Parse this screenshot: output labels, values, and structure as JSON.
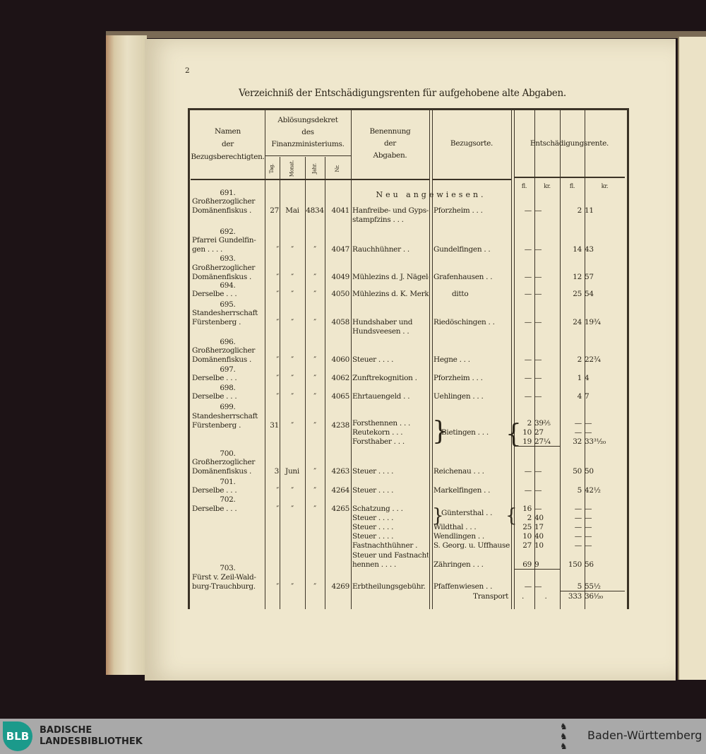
{
  "page_number": "2",
  "title": "Verzeichniß der Entschädigungsrenten für aufgehobene alte Abgaben.",
  "headers": {
    "namen": [
      "Namen",
      "der",
      "Bezugsberechtigten."
    ],
    "dekret": [
      "Ablösungsdekret",
      "des",
      "Finanzministeriums."
    ],
    "tag": "Tag.",
    "monat": "Monat.",
    "jahr": "Jahr.",
    "nr": "Nr.",
    "benennung": [
      "Benennung",
      "der",
      "Abgaben."
    ],
    "orte": "Bezugsorte.",
    "rente": "Entschädigungsrente.",
    "units": [
      "fl.",
      "kr.",
      "fl.",
      "kr."
    ]
  },
  "section": "Neu angewiesen.",
  "entries": [
    {
      "num": "691.",
      "name": [
        "Großherzoglicher",
        "Domänenfiskus ."
      ],
      "tag": "27",
      "monat": "Mai",
      "jahr": "4834",
      "nr": "4041",
      "items": [
        {
          "a": [
            "Hanfreibe- und Gyps-",
            "stampfzins . . ."
          ],
          "o": "Pforzheim . . .",
          "v": [
            "—",
            "—",
            "2",
            "11"
          ]
        }
      ]
    },
    {
      "num": "692.",
      "name": [
        "Pfarrei Gundelfin-",
        "gen . . . ."
      ],
      "tag": "″",
      "monat": "″",
      "jahr": "″",
      "nr": "4047",
      "items": [
        {
          "a": [
            "Rauchhühner . ."
          ],
          "o": "Gundelfingen . .",
          "v": [
            "—",
            "—",
            "14",
            "43"
          ]
        }
      ]
    },
    {
      "num": "693.",
      "name": [
        "Großherzoglicher",
        "Domänenfiskus ."
      ],
      "tag": "″",
      "monat": "″",
      "jahr": "″",
      "nr": "4049",
      "items": [
        {
          "a": [
            "Mühlezins d. J. Nägele"
          ],
          "o": "Grafenhausen . .",
          "v": [
            "—",
            "—",
            "12",
            "57"
          ]
        }
      ]
    },
    {
      "num": "694.",
      "name": [
        "Derselbe . . ."
      ],
      "tag": "″",
      "monat": "″",
      "jahr": "″",
      "nr": "4050",
      "items": [
        {
          "a": [
            "Mühlezins d. K. Merkl"
          ],
          "o": "ditto",
          "v": [
            "—",
            "—",
            "25",
            "54"
          ]
        }
      ]
    },
    {
      "num": "695.",
      "name": [
        "Standesherrschaft",
        "Fürstenberg ."
      ],
      "tag": "″",
      "monat": "″",
      "jahr": "″",
      "nr": "4058",
      "items": [
        {
          "a": [
            "Hundshaber und",
            "Hundsveesen . ."
          ],
          "o": "Riedöschingen . .",
          "v": [
            "—",
            "—",
            "24",
            "19¾"
          ]
        }
      ]
    },
    {
      "num": "696.",
      "name": [
        "Großherzoglicher",
        "Domänenfiskus ."
      ],
      "tag": "″",
      "monat": "″",
      "jahr": "″",
      "nr": "4060",
      "items": [
        {
          "a": [
            "Steuer . . . ."
          ],
          "o": "Hegne . . .",
          "v": [
            "—",
            "—",
            "2",
            "22¾"
          ]
        }
      ]
    },
    {
      "num": "697.",
      "name": [
        "Derselbe . . ."
      ],
      "tag": "″",
      "monat": "″",
      "jahr": "″",
      "nr": "4062",
      "items": [
        {
          "a": [
            "Zunftrekognition ."
          ],
          "o": "Pforzheim . . .",
          "v": [
            "—",
            "—",
            "1",
            "4"
          ]
        }
      ]
    },
    {
      "num": "698.",
      "name": [
        "Derselbe . . ."
      ],
      "tag": "″",
      "monat": "″",
      "jahr": "″",
      "nr": "4065",
      "items": [
        {
          "a": [
            "Ehrtauengeld . ."
          ],
          "o": "Uehlingen . . .",
          "v": [
            "—",
            "—",
            "4",
            "7"
          ]
        }
      ]
    },
    {
      "num": "699.",
      "name": [
        "Standesherrschaft",
        "Fürstenberg ."
      ],
      "tag": "31",
      "monat": "″",
      "jahr": "″",
      "nr": "4238",
      "items": [
        {
          "a": [
            "Forsthennen . . ."
          ],
          "o": "",
          "v": [
            "2",
            "39⅖",
            "—",
            "—"
          ]
        },
        {
          "a": [
            "Reutekorn . . ."
          ],
          "o": "Bietingen . . .",
          "v": [
            "10",
            "27",
            "—",
            "—"
          ]
        },
        {
          "a": [
            "Forsthaber . . ."
          ],
          "o": "",
          "v": [
            "19",
            "27¼",
            "32",
            "33³¹⁄₂₀"
          ]
        }
      ]
    },
    {
      "num": "700.",
      "name": [
        "Großherzoglicher",
        "Domänenfiskus ."
      ],
      "tag": "3",
      "monat": "Juni",
      "jahr": "″",
      "nr": "4263",
      "items": [
        {
          "a": [
            "Steuer . . . ."
          ],
          "o": "Reichenau . . .",
          "v": [
            "—",
            "—",
            "50",
            "50"
          ]
        }
      ]
    },
    {
      "num": "701.",
      "name": [
        "Derselbe . . ."
      ],
      "tag": "″",
      "monat": "″",
      "jahr": "″",
      "nr": "4264",
      "items": [
        {
          "a": [
            "Steuer . . . ."
          ],
          "o": "Markelfingen . .",
          "v": [
            "—",
            "—",
            "5",
            "42½"
          ]
        }
      ]
    },
    {
      "num": "702.",
      "name": [
        "Derselbe . . ."
      ],
      "tag": "″",
      "monat": "″",
      "jahr": "″",
      "nr": "4265",
      "items": [
        {
          "a": [
            "Schatzung . . ."
          ],
          "o": "Güntersthal . .",
          "v": [
            "16",
            "—",
            "—",
            "—"
          ]
        },
        {
          "a": [
            "Steuer . . . ."
          ],
          "o": "",
          "v": [
            "2",
            "40",
            "—",
            "—"
          ]
        },
        {
          "a": [
            "Steuer . . . ."
          ],
          "o": "Wildthal . . .",
          "v": [
            "25",
            "17",
            "—",
            "—"
          ]
        },
        {
          "a": [
            "Steuer . . . ."
          ],
          "o": "Wendlingen . .",
          "v": [
            "10",
            "40",
            "—",
            "—"
          ]
        },
        {
          "a": [
            "Fastnachthühner ."
          ],
          "o": "S. Georg. u. Uffhausen",
          "v": [
            "27",
            "10",
            "—",
            "—"
          ]
        },
        {
          "a": [
            "Steuer und Fastnacht-",
            "hennen . . . ."
          ],
          "o": "Zähringen . . .",
          "v": [
            "69",
            "9",
            "150",
            "56"
          ]
        }
      ]
    },
    {
      "num": "703.",
      "name": [
        "Fürst v. Zeil-Wald-",
        "burg-Trauchburg."
      ],
      "tag": "″",
      "monat": "″",
      "jahr": "″",
      "nr": "4269",
      "items": [
        {
          "a": [
            "Erbtheilungsgebühr."
          ],
          "o": "Pfaffenwiesen . .",
          "v": [
            "—",
            "—",
            "5",
            "55½"
          ]
        }
      ]
    }
  ],
  "transport": {
    "label": "Transport",
    "v": [
      ".",
      ".",
      "333",
      "36¹⁄₂₀"
    ]
  },
  "footer": {
    "logo": "BLB",
    "library": [
      "BADISCHE",
      "LANDESBIBLIOTHEK"
    ],
    "state": "Baden-Württemberg",
    "accent": "#1b9a8b"
  }
}
